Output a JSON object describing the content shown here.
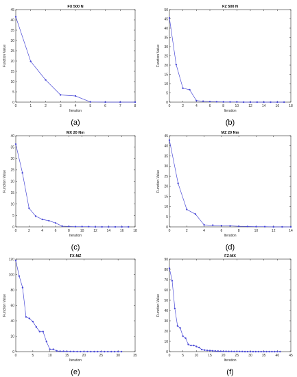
{
  "chart_data": [
    {
      "type": "line",
      "panel_label": "(a)",
      "title": "FX 500 N",
      "xlabel": "Iteration",
      "ylabel": "Function Value",
      "xlim": [
        0,
        8
      ],
      "ylim": [
        0,
        45
      ],
      "xticks": [
        0,
        1,
        2,
        3,
        4,
        5,
        6,
        7,
        8
      ],
      "yticks": [
        0,
        5,
        10,
        15,
        20,
        25,
        30,
        35,
        40,
        45
      ],
      "x": [
        0,
        1,
        2,
        3,
        4,
        5,
        6,
        7,
        8
      ],
      "y": [
        41.5,
        19.8,
        10.8,
        3.5,
        3.0,
        0.1,
        0.0,
        0.0,
        0.0
      ],
      "color": "#4a4ad6",
      "grid": false
    },
    {
      "type": "line",
      "panel_label": "(b)",
      "title": "FZ 500 N",
      "xlabel": "Iteration",
      "ylabel": "Function Value",
      "xlim": [
        0,
        18
      ],
      "ylim": [
        0,
        50
      ],
      "xticks": [
        0,
        2,
        4,
        6,
        8,
        10,
        12,
        14,
        16,
        18
      ],
      "yticks": [
        0,
        5,
        10,
        15,
        20,
        25,
        30,
        35,
        40,
        45,
        50
      ],
      "x": [
        0,
        1,
        2,
        3,
        4,
        5,
        6,
        7,
        8,
        9,
        10,
        11,
        12,
        13,
        14,
        15,
        16,
        17
      ],
      "y": [
        45.5,
        20.3,
        7.5,
        6.7,
        0.8,
        0.5,
        0.3,
        0.2,
        0.1,
        0.1,
        0.1,
        0.0,
        0.0,
        0.0,
        0.0,
        0.0,
        0.0,
        0.0
      ],
      "color": "#4a4ad6",
      "grid": false
    },
    {
      "type": "line",
      "panel_label": "(c)",
      "title": "MX 20 Nm",
      "xlabel": "Iteration",
      "ylabel": "Function Value",
      "xlim": [
        0,
        18
      ],
      "ylim": [
        0,
        40
      ],
      "xticks": [
        0,
        2,
        4,
        6,
        8,
        10,
        12,
        14,
        16,
        18
      ],
      "yticks": [
        0,
        5,
        10,
        15,
        20,
        25,
        30,
        35,
        40
      ],
      "x": [
        0,
        1,
        2,
        3,
        4,
        5,
        6,
        7,
        8,
        9,
        10,
        11,
        12,
        13,
        14,
        15,
        16,
        17
      ],
      "y": [
        36.3,
        23.7,
        8.2,
        4.7,
        3.3,
        2.7,
        1.7,
        0.3,
        0.2,
        0.1,
        0.1,
        0.1,
        0.0,
        0.0,
        0.0,
        0.0,
        0.0,
        0.0
      ],
      "color": "#4a4ad6",
      "grid": false
    },
    {
      "type": "line",
      "panel_label": "(d)",
      "title": "MZ 20 Nm",
      "xlabel": "Iteration",
      "ylabel": "Function Value",
      "xlim": [
        0,
        14
      ],
      "ylim": [
        0,
        45
      ],
      "xticks": [
        0,
        2,
        4,
        6,
        8,
        10,
        12,
        14
      ],
      "yticks": [
        0,
        5,
        10,
        15,
        20,
        25,
        30,
        35,
        40,
        45
      ],
      "x": [
        0,
        1,
        2,
        3,
        4,
        5,
        6,
        7,
        8,
        9,
        10,
        11,
        12,
        13,
        14
      ],
      "y": [
        42.8,
        21.5,
        8.6,
        6.3,
        1.0,
        0.8,
        0.6,
        0.5,
        0.3,
        0.2,
        0.1,
        0.1,
        0.0,
        0.0,
        0.0
      ],
      "color": "#4a4ad6",
      "grid": false
    },
    {
      "type": "line",
      "panel_label": "(e)",
      "title": "FX-MZ",
      "xlabel": "Iteration",
      "ylabel": "Function Value",
      "xlim": [
        0,
        35
      ],
      "ylim": [
        0,
        120
      ],
      "xticks": [
        0,
        5,
        10,
        15,
        20,
        25,
        30,
        35
      ],
      "yticks": [
        0,
        20,
        40,
        60,
        80,
        100,
        120
      ],
      "x": [
        0,
        1,
        2,
        3,
        4,
        5,
        6,
        7,
        8,
        9,
        10,
        11,
        12,
        13,
        14,
        15,
        16,
        17,
        18,
        19,
        20,
        21,
        22,
        23,
        24,
        25,
        26,
        27,
        28,
        29,
        30,
        31
      ],
      "y": [
        118,
        98,
        83,
        45,
        43,
        39,
        32,
        26,
        26,
        13,
        3,
        3,
        1,
        0.5,
        0.5,
        0.3,
        0.2,
        0.2,
        0.1,
        0.1,
        0.1,
        0.1,
        0.0,
        0.0,
        0.0,
        0.0,
        0.0,
        0.0,
        0.0,
        0.0,
        0.0,
        0.0
      ],
      "color": "#4a4ad6",
      "grid": false
    },
    {
      "type": "line",
      "panel_label": "(f)",
      "title": "FZ-MX",
      "xlabel": "Iteration",
      "ylabel": "Function Value",
      "xlim": [
        0,
        45
      ],
      "ylim": [
        0,
        90
      ],
      "xticks": [
        0,
        5,
        10,
        15,
        20,
        25,
        30,
        35,
        40,
        45
      ],
      "yticks": [
        0,
        10,
        20,
        30,
        40,
        50,
        60,
        70,
        80,
        90
      ],
      "x": [
        0,
        1,
        2,
        3,
        4,
        5,
        6,
        7,
        8,
        9,
        10,
        11,
        12,
        13,
        14,
        15,
        16,
        17,
        18,
        19,
        20,
        21,
        22,
        23,
        24,
        25,
        26,
        27,
        28,
        29,
        30,
        31,
        32,
        33,
        34,
        35,
        36,
        37,
        38,
        39,
        40,
        41
      ],
      "y": [
        81,
        69,
        42,
        25,
        23,
        15,
        13,
        7,
        6,
        6,
        5,
        4,
        2,
        1.5,
        1.2,
        1.0,
        0.8,
        0.6,
        0.5,
        0.4,
        0.3,
        0.3,
        0.2,
        0.2,
        0.1,
        0.1,
        0.1,
        0.1,
        0.0,
        0.0,
        0.0,
        0.0,
        0.0,
        0.0,
        0.0,
        0.0,
        0.0,
        0.0,
        0.0,
        0.0,
        0.0,
        0.0
      ],
      "color": "#4a4ad6",
      "grid": false
    }
  ]
}
